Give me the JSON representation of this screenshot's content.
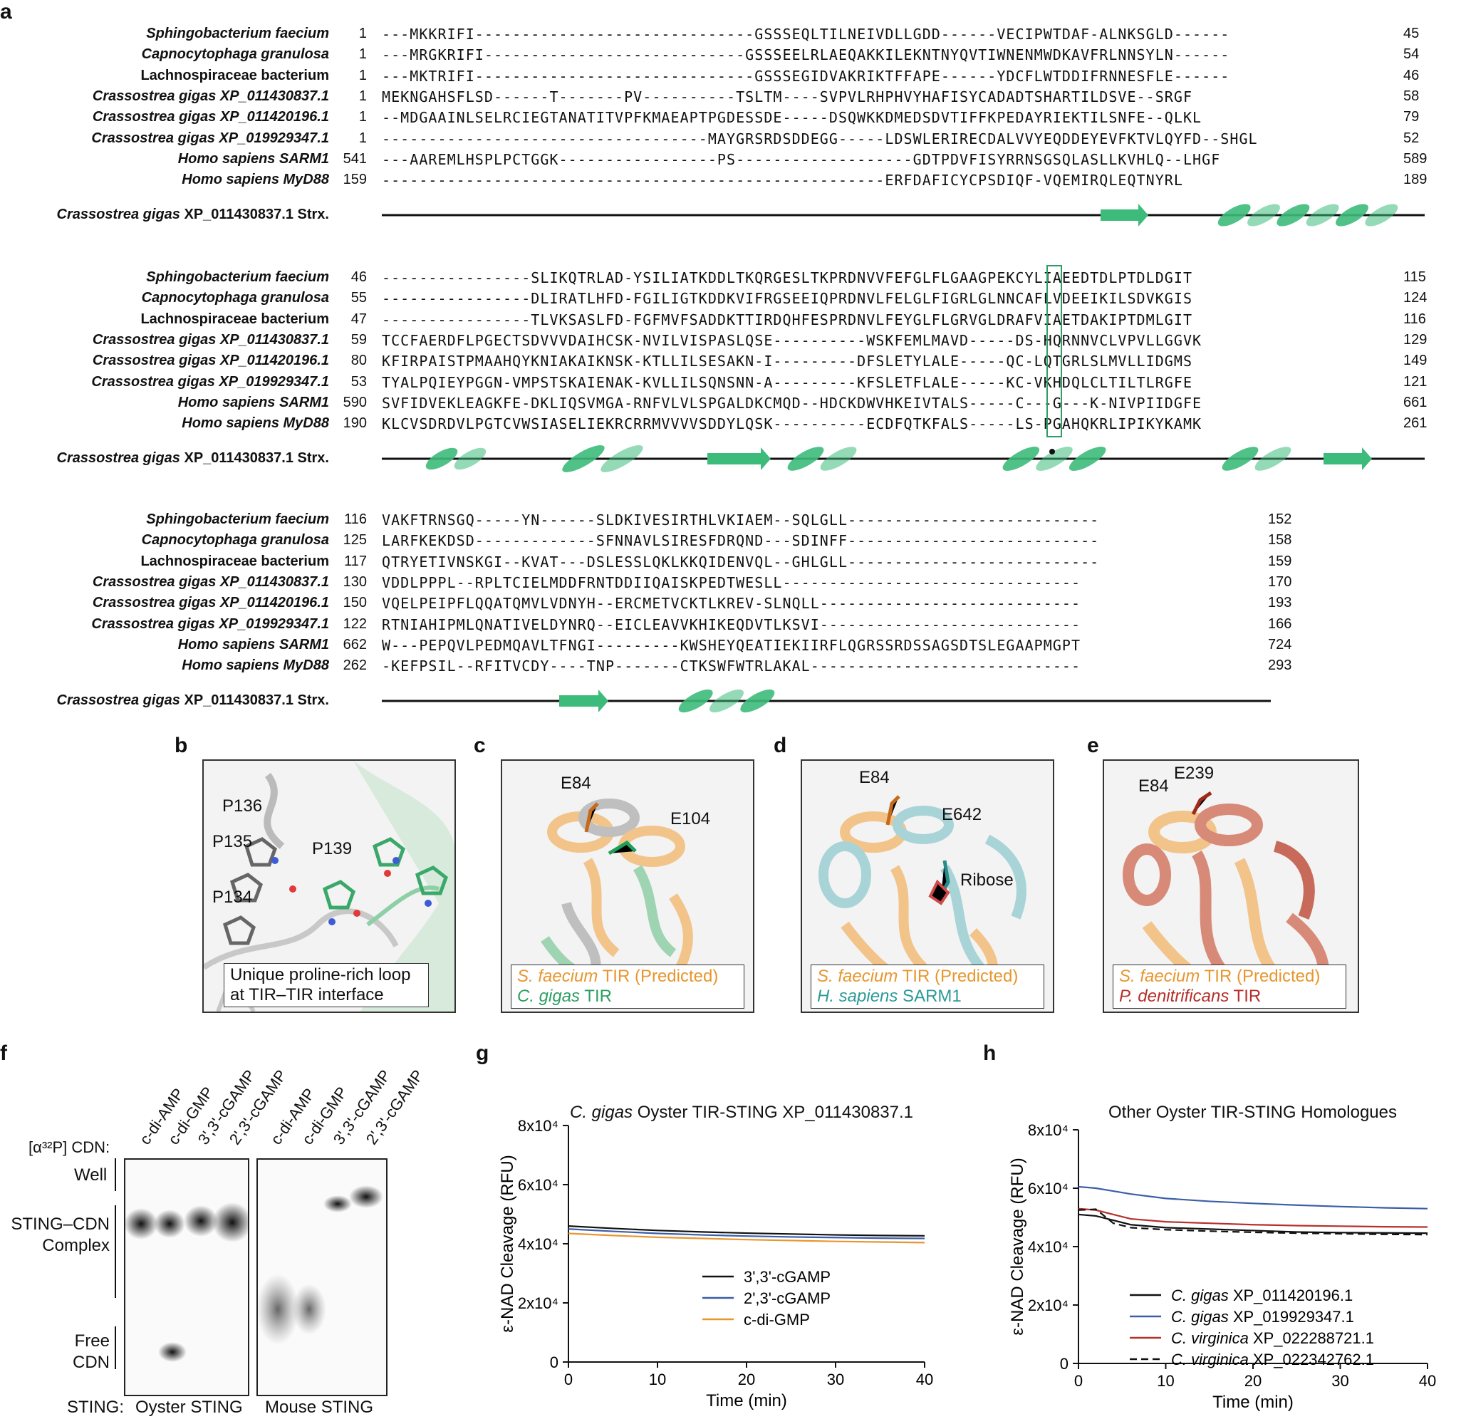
{
  "panel_labels": {
    "a": "a",
    "b": "b",
    "c": "c",
    "d": "d",
    "e": "e",
    "f": "f",
    "g": "g",
    "h": "h"
  },
  "alignment": {
    "struct_label_species": "Crassostrea gigas",
    "struct_label_rest": "XP_011430837.1 Strx.",
    "blocks": [
      {
        "rows": [
          {
            "species": "Sphingobacterium faecium",
            "italic": true,
            "start": "1",
            "seq": "---MKKRIFI------------------------------GSSSEQLTILNEIVDLLGDD------VECIPWTDAF-ALNKSGLD------",
            "end": "45"
          },
          {
            "species": "Capnocytophaga granulosa",
            "italic": true,
            "start": "1",
            "seq": "---MRGKRIFI----------------------------GSSSEELRLAEQAKKILEKNTNYQVTIWNENMWDKAVFRLNNSYLN------",
            "end": "54"
          },
          {
            "species": "Lachnospiraceae bacterium",
            "italic": false,
            "start": "1",
            "seq": "---MKTRIFI------------------------------GSSSEGIDVAKRIKTFFAPE------YDCFLWTDDIFRNNESFLE------",
            "end": "46"
          },
          {
            "species": "Crassostrea gigas XP_011430837.1",
            "italic": true,
            "start": "1",
            "seq": "MEKNGAHSFLSD------T-------PV----------TSLTM----SVPVLRHPHVYHAFISYCADADTSHARTILDSVE--SRGF",
            "end": "58"
          },
          {
            "species": "Crassostrea gigas XP_011420196.1",
            "italic": true,
            "start": "1",
            "seq": "--MDGAAINLSELRCIEGTANATITVPFKMAEAPTPGDESSDE-----DSQWKKDMEDSDVTIFFKPEDAYRIEKTILSNFE--QLKL",
            "end": "79"
          },
          {
            "species": "Crassostrea gigas XP_019929347.1",
            "italic": true,
            "start": "1",
            "seq": "-----------------------------------MAYGRSRDSDDEGG-----LDSWLERIRECDALVVYEQDDEYEVFKTVLQYFD--SHGL",
            "end": "52"
          },
          {
            "species": "Homo sapiens SARM1",
            "italic": true,
            "start": "541",
            "seq": "---AAREMLHSPLPCTGGK-----------------PS-------------------GDTPDVFISYRRNSGSQLASLLKVHLQ--LHGF",
            "end": "589"
          },
          {
            "species": "Homo sapiens MyD88",
            "italic": true,
            "start": "159",
            "seq": "------------------------------------------------------ERFDAFICYCPSDIQF-VQEMIRQLEQTNYRL",
            "end": "189"
          }
        ]
      },
      {
        "rows": [
          {
            "species": "Sphingobacterium faecium",
            "italic": true,
            "start": "46",
            "seq": "----------------SLIKQTRLAD-YSILIATKDDLTKQRGESLTKPRDNVVFEFGLFLGAAGPEKCYLIAEEDTDLPTDLDGIT",
            "end": "115"
          },
          {
            "species": "Capnocytophaga granulosa",
            "italic": true,
            "start": "55",
            "seq": "----------------DLIRATLHFD-FGILIGTKDDKVIFRGSEEIQPRDNVLFELGLFIGRLGLNNCAFLVDEEIKILSDVKGIS",
            "end": "124"
          },
          {
            "species": "Lachnospiraceae bacterium",
            "italic": false,
            "start": "47",
            "seq": "----------------TLVKSASLFD-FGFMVFSADDKTTIRDQHFESPRDNVLFEYGLFLGRVGLDRAFVIAETDAKIPTDMLGIT",
            "end": "116"
          },
          {
            "species": "Crassostrea gigas XP_011430837.1",
            "italic": true,
            "start": "59",
            "seq": "TCCFAERDFLPGECTSDVVVDAIHCSK-NVILVISPASLQSE----------WSKFEMLMAVD-----DS-HQRNNVCLVPVLLGGVK",
            "end": "129"
          },
          {
            "species": "Crassostrea gigas XP_011420196.1",
            "italic": true,
            "start": "80",
            "seq": "KFIRPAISTPMAAHQYKNIAKAIKNSK-KTLLILSESAKN-I---------DFSLETYLALE-----QC-LQTGRLSLMVLLIDGMS",
            "end": "149"
          },
          {
            "species": "Crassostrea gigas XP_019929347.1",
            "italic": true,
            "start": "53",
            "seq": "TYALPQIEYPGGN-VMPSTSKAIENAK-KVLLILSQNSNN-A---------KFSLETFLALE-----KC-VKHDQLCLTILTLRGFE",
            "end": "121"
          },
          {
            "species": "Homo sapiens SARM1",
            "italic": true,
            "start": "590",
            "seq": "SVFIDVEKLEAGKFE-DKLIQSVMGA-RNFVLVLSPGALDKCMQD--HDCKDWVHKEIVTALS-----C---G---K-NIVPIIDGFE",
            "end": "661"
          },
          {
            "species": "Homo sapiens MyD88",
            "italic": true,
            "start": "190",
            "seq": "KLCVSDRDVLPGTCVWSIASELIEKRCRRMVVVVSDDYLQSK----------ECDFQTKFALS-----LS-PGAHQKRLIPIKYKAMK",
            "end": "261"
          }
        ]
      },
      {
        "rows": [
          {
            "species": "Sphingobacterium faecium",
            "italic": true,
            "start": "116",
            "seq": "VAKFTRNSGQ-----YN------SLDKIVESIRTHLVKIAEM--SQLGLL---------------------------",
            "end": "152"
          },
          {
            "species": "Capnocytophaga granulosa",
            "italic": true,
            "start": "125",
            "seq": "LARFKEKDSD-------------SFNNAVLSIRESFDRQND---SDINFF---------------------------",
            "end": "158"
          },
          {
            "species": "Lachnospiraceae bacterium",
            "italic": false,
            "start": "117",
            "seq": "QTRYETIVNSKGI--KVAT---DSLESSLQKLKKQIDENVQL--GHLGLL---------------------------",
            "end": "159"
          },
          {
            "species": "Crassostrea gigas XP_011430837.1",
            "italic": true,
            "start": "130",
            "seq": "VDDLPPPL--RPLTCIELMDDFRNTDDIIQAISKPEDTWESLL--------------------------------",
            "end": "170"
          },
          {
            "species": "Crassostrea gigas XP_011420196.1",
            "italic": true,
            "start": "150",
            "seq": "VQELPEIPFLQQATQMVLVDNYH--ERCMETVCKTLKREV-SLNQLL----------------------------",
            "end": "193"
          },
          {
            "species": "Crassostrea gigas XP_019929347.1",
            "italic": true,
            "start": "122",
            "seq": "RTNIAHIPMLQNATIVELDYNRQ--EICLEAVVKHIKEQDVTLKSVI----------------------------",
            "end": "166"
          },
          {
            "species": "Homo sapiens SARM1",
            "italic": true,
            "start": "662",
            "seq": "W---PEPQVLPEDMQAVLTFNGI---------KWSHEYQEATIEKIIRFLQGRSSRDSSAGSDTSLEGAAPMGPT",
            "end": "724"
          },
          {
            "species": "Homo sapiens MyD88",
            "italic": true,
            "start": "262",
            "seq": "-KEFPSIL--RFITVCDY----TNP-------CTKSWFWTRLAKAL-----------------------------",
            "end": "293"
          }
        ]
      }
    ]
  },
  "panel_b": {
    "labels": [
      "P136",
      "P135",
      "P139",
      "P134"
    ],
    "caption_line1": "Unique proline-rich loop",
    "caption_line2": "at TIR–TIR interface"
  },
  "panel_c": {
    "labels": [
      "E84",
      "E104"
    ],
    "cap1_it": "S. faecium",
    "cap1_rest": " TIR (Predicted)",
    "cap2_it": "C. gigas",
    "cap2_rest": " TIR"
  },
  "panel_d": {
    "labels": [
      "E84",
      "E642",
      "Ribose"
    ],
    "cap1_it": "S. faecium",
    "cap1_rest": " TIR (Predicted)",
    "cap2_it": "H. sapiens",
    "cap2_rest": " SARM1"
  },
  "panel_e": {
    "labels": [
      "E84",
      "E239"
    ],
    "cap1_it": "S. faecium",
    "cap1_rest": " TIR (Predicted)",
    "cap2_it": "P. denitrificans",
    "cap2_rest": " TIR"
  },
  "colors": {
    "orange": "#e8962e",
    "green": "#2e9e63",
    "teal": "#2c9a9a",
    "red": "#b5302a",
    "blue": "#3b5ea8",
    "black": "#111111",
    "helix": "#3dbb7a"
  },
  "panel_f": {
    "cdn_label": "[α³²P] CDN:",
    "lanes": [
      "c-di-AMP",
      "c-di-GMP",
      "3',3'-cGAMP",
      "2',3'-cGAMP",
      "c-di-AMP",
      "c-di-GMP",
      "3',3'-cGAMP",
      "2',3'-cGAMP"
    ],
    "row_well": "Well",
    "row_complex1": "STING–CDN",
    "row_complex2": "Complex",
    "row_free1": "Free",
    "row_free2": "CDN",
    "sting_label": "STING:",
    "gel1": "Oyster STING",
    "gel2": "Mouse STING"
  },
  "chart_data": [
    {
      "type": "line",
      "title_it": "C. gigas",
      "title_rest": " Oyster TIR-STING XP_011430837.1",
      "xlabel": "Time (min)",
      "ylabel": "ε-NAD Cleavage (RFU)",
      "xlim": [
        0,
        40
      ],
      "ylim": [
        0,
        80000
      ],
      "xticks": [
        "0",
        "10",
        "20",
        "30",
        "40"
      ],
      "yticks": [
        "0",
        "2x10⁴",
        "4x10⁴",
        "6x10⁴",
        "8x10⁴"
      ],
      "x": [
        0,
        5,
        10,
        15,
        20,
        25,
        30,
        35,
        40
      ],
      "series": [
        {
          "name": "3',3'-cGAMP",
          "color": "#111111",
          "dash": false,
          "values": [
            46000,
            45200,
            44500,
            44000,
            43600,
            43300,
            43000,
            42800,
            42700
          ]
        },
        {
          "name": "2',3'-cGAMP",
          "color": "#3b5ea8",
          "dash": false,
          "values": [
            45000,
            44200,
            43500,
            43000,
            42600,
            42300,
            42100,
            41900,
            41800
          ]
        },
        {
          "name": "c-di-GMP",
          "color": "#e8962e",
          "dash": false,
          "values": [
            43500,
            42800,
            42200,
            41800,
            41400,
            41100,
            40800,
            40600,
            40400
          ]
        }
      ]
    },
    {
      "type": "line",
      "title": "Other Oyster TIR-STING Homologues",
      "xlabel": "Time (min)",
      "ylabel": "ε-NAD Cleavage (RFU)",
      "xlim": [
        0,
        40
      ],
      "ylim": [
        0,
        80000
      ],
      "xticks": [
        "0",
        "10",
        "20",
        "30",
        "40"
      ],
      "yticks": [
        "0",
        "2x10⁴",
        "4x10⁴",
        "6x10⁴",
        "8x10⁴"
      ],
      "x": [
        0,
        2,
        4,
        6,
        10,
        15,
        20,
        25,
        30,
        35,
        40
      ],
      "series": [
        {
          "name_it": "C. gigas",
          "name_rest": " XP_011420196.1",
          "color": "#111111",
          "dash": false,
          "values": [
            51000,
            50500,
            49000,
            47500,
            46500,
            46000,
            45500,
            45000,
            44800,
            44700,
            44600
          ]
        },
        {
          "name_it": "C. gigas",
          "name_rest": " XP_019929347.1",
          "color": "#3b5ea8",
          "dash": false,
          "values": [
            60500,
            60000,
            59000,
            58000,
            56500,
            55500,
            54800,
            54200,
            53700,
            53300,
            53000
          ]
        },
        {
          "name_it": "C. virginica",
          "name_rest": " XP_022288721.1",
          "color": "#b5302a",
          "dash": false,
          "values": [
            53000,
            52500,
            51000,
            49500,
            48500,
            48000,
            47500,
            47200,
            47000,
            46800,
            46700
          ]
        },
        {
          "name_it": "C. virginica",
          "name_rest": " XP_022342762.1",
          "color": "#111111",
          "dash": true,
          "values": [
            52500,
            52800,
            48000,
            46500,
            45800,
            45300,
            44900,
            44600,
            44400,
            44200,
            44100
          ]
        }
      ]
    }
  ]
}
